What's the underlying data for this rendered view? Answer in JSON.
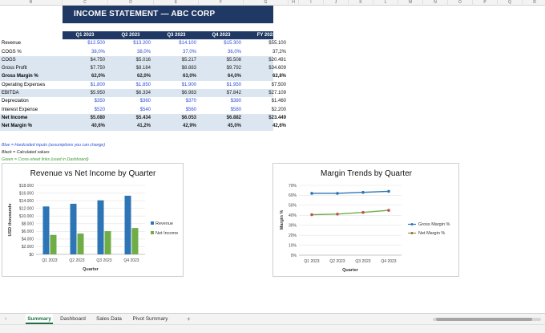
{
  "columns": [
    "B",
    "C",
    "D",
    "E",
    "F",
    "G",
    "H",
    "I",
    "J",
    "K",
    "L",
    "M",
    "N",
    "O",
    "P",
    "Q",
    "R"
  ],
  "title": "INCOME STATEMENT — ABC CORP",
  "table": {
    "headers": [
      "Q1 2023",
      "Q2 2023",
      "Q3 2023",
      "Q4 2023",
      "FY 2023"
    ],
    "rows": [
      {
        "label": "Revenue",
        "values": [
          "$12.500",
          "$13.200",
          "$14.100",
          "$15.300",
          "$55.100"
        ],
        "shade": false,
        "bold": false,
        "input": true
      },
      {
        "label": "COGS %",
        "values": [
          "38,0%",
          "38,0%",
          "37,0%",
          "36,0%",
          "37,2%"
        ],
        "shade": false,
        "bold": false,
        "input": true
      },
      {
        "label": "COGS",
        "values": [
          "$4.750",
          "$5.016",
          "$5.217",
          "$5.508",
          "$20.491"
        ],
        "shade": true,
        "bold": false,
        "input": false
      },
      {
        "label": "Gross Profit",
        "values": [
          "$7.750",
          "$8.184",
          "$8.883",
          "$9.792",
          "$34.609"
        ],
        "shade": true,
        "bold": false,
        "input": false
      },
      {
        "label": "Gross Margin %",
        "values": [
          "62,0%",
          "62,0%",
          "63,0%",
          "64,0%",
          "62,8%"
        ],
        "shade": true,
        "bold": true,
        "input": false
      },
      {
        "label": "Operating Expenses",
        "values": [
          "$1.800",
          "$1.850",
          "$1.900",
          "$1.950",
          "$7.500"
        ],
        "shade": false,
        "bold": false,
        "input": true
      },
      {
        "label": "EBITDA",
        "values": [
          "$5.950",
          "$6.334",
          "$6.983",
          "$7.842",
          "$27.109"
        ],
        "shade": true,
        "bold": false,
        "input": false
      },
      {
        "label": "Depreciation",
        "values": [
          "$350",
          "$360",
          "$370",
          "$380",
          "$1.460"
        ],
        "shade": false,
        "bold": false,
        "input": true
      },
      {
        "label": "Interest Expense",
        "values": [
          "$520",
          "$540",
          "$560",
          "$580",
          "$2.200"
        ],
        "shade": false,
        "bold": false,
        "input": true
      },
      {
        "label": "Net Income",
        "values": [
          "$5.080",
          "$5.434",
          "$6.053",
          "$6.882",
          "$23.449"
        ],
        "shade": true,
        "bold": true,
        "input": false
      },
      {
        "label": "Net Margin %",
        "values": [
          "40,6%",
          "41,2%",
          "42,9%",
          "45,0%",
          "42,6%"
        ],
        "shade": true,
        "bold": true,
        "input": false
      }
    ]
  },
  "notes": {
    "blue": "Blue = Hardcoded inputs (assumptions you can change)",
    "black": "Black = Calculated values",
    "green": "Green = Cross-sheet links (used in Dashboard)"
  },
  "colors": {
    "title_bg": "#1f3864",
    "shade": "#dce6f1",
    "input_text": "#2e4fd9",
    "revenue": "#2e75b6",
    "net_income": "#70ad47",
    "gross_margin": "#2e75b6",
    "net_margin": "#70ad47"
  },
  "chart_data": [
    {
      "type": "bar",
      "title": "Revenue vs Net Income by Quarter",
      "categories": [
        "Q1 2023",
        "Q2 2023",
        "Q3 2023",
        "Q4 2023"
      ],
      "series": [
        {
          "name": "Revenue",
          "values": [
            12500,
            13200,
            14100,
            15300
          ]
        },
        {
          "name": "Net Income",
          "values": [
            5080,
            5434,
            6053,
            6882
          ]
        }
      ],
      "xlabel": "Quarter",
      "ylabel": "USD thousands",
      "ylim": [
        0,
        18000
      ],
      "yticks": [
        "$0",
        "$2.000",
        "$4.000",
        "$6.000",
        "$8.000",
        "$10.000",
        "$12.000",
        "$14.000",
        "$16.000",
        "$18.000"
      ],
      "legend": "right",
      "grid": true
    },
    {
      "type": "line",
      "title": "Margin Trends by Quarter",
      "categories": [
        "Q1 2023",
        "Q2 2023",
        "Q3 2023",
        "Q4 2023"
      ],
      "series": [
        {
          "name": "Gross Margin %",
          "values": [
            62.0,
            62.0,
            63.0,
            64.0
          ]
        },
        {
          "name": "Net Margin %",
          "values": [
            40.6,
            41.2,
            42.9,
            45.0
          ]
        }
      ],
      "xlabel": "Quarter",
      "ylabel": "Margin %",
      "ylim": [
        0,
        70
      ],
      "yticks": [
        "0%",
        "10%",
        "20%",
        "30%",
        "40%",
        "50%",
        "60%",
        "70%"
      ],
      "legend": "right",
      "grid": true
    }
  ],
  "tabs": [
    "Summary",
    "Dashboard",
    "Sales Data",
    "Pivot Summary"
  ],
  "active_tab": "Summary",
  "add_sheet": "+",
  "nav_left": "›"
}
